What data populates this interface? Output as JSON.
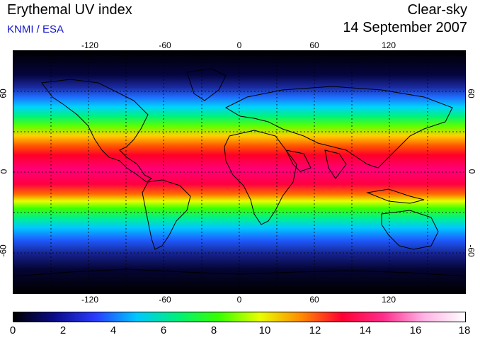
{
  "header": {
    "title": "Erythemal UV index",
    "credit": "KNMI / ESA",
    "condition": "Clear-sky",
    "date": "14 September 2007"
  },
  "map": {
    "lon_ticks": [
      "-120",
      "-60",
      "0",
      "60",
      "120"
    ],
    "lat_ticks": [
      "60",
      "0",
      "-60"
    ],
    "lon_range": [
      -180,
      180
    ],
    "lat_range": [
      -90,
      90
    ]
  },
  "colorbar": {
    "ticks": [
      "0",
      "2",
      "4",
      "6",
      "8",
      "10",
      "12",
      "14",
      "16",
      "18"
    ],
    "range": [
      0,
      18
    ],
    "colors": [
      "#000000",
      "#0b0b8a",
      "#2a3cff",
      "#00c8ff",
      "#00f07a",
      "#38ff00",
      "#e8ff00",
      "#ff8c00",
      "#ff0033",
      "#ff2d8a",
      "#ffb3e6",
      "#ffffff"
    ]
  }
}
